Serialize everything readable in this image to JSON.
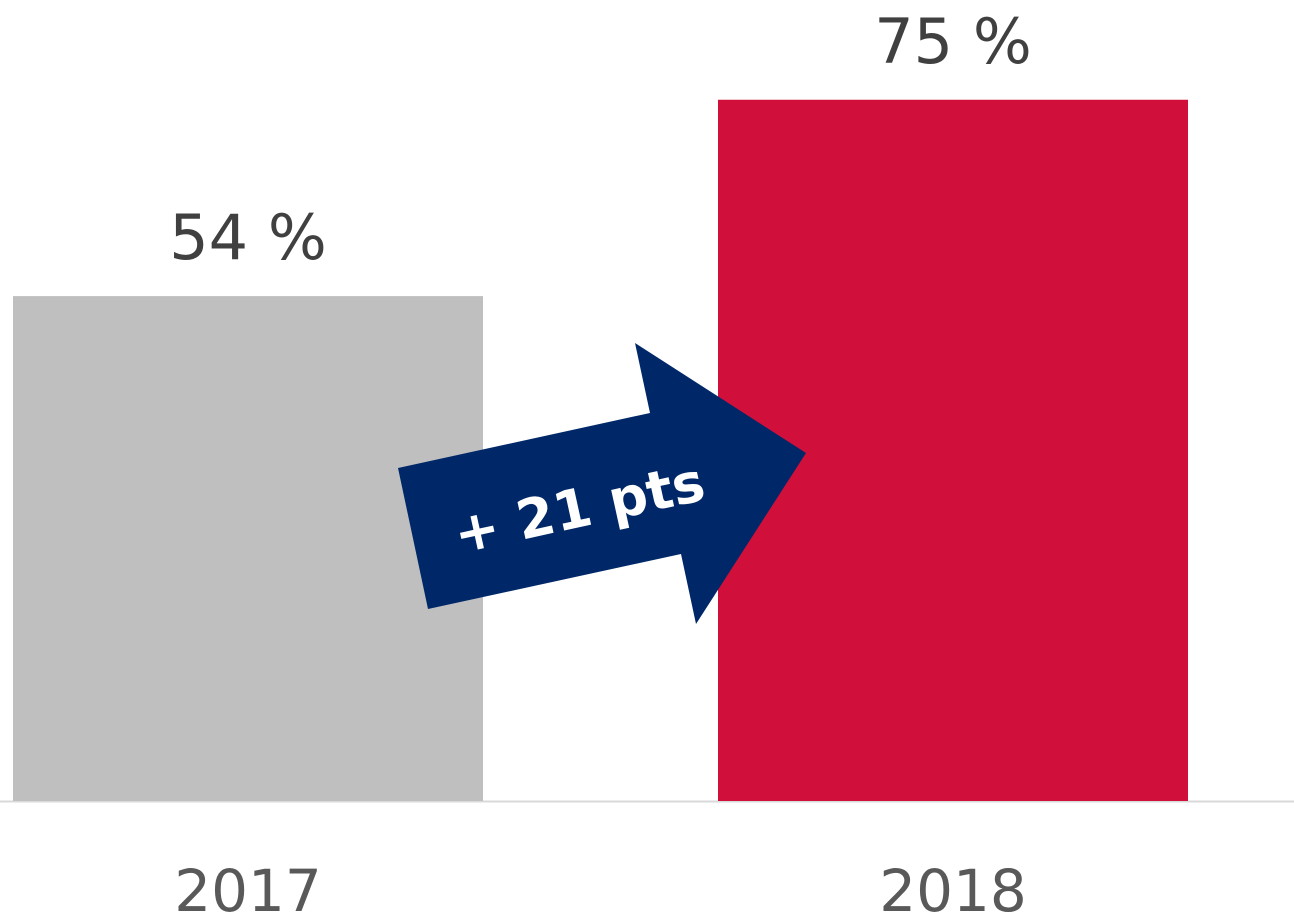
{
  "chart_data": {
    "type": "bar",
    "categories": [
      "2017",
      "2018"
    ],
    "values": [
      54,
      75
    ],
    "value_labels": [
      "54 %",
      "75 %"
    ],
    "colors": [
      "#bfbfbf",
      "#d0103a"
    ],
    "ylim": [
      0,
      80
    ],
    "annotation": "+ 21 pts",
    "annotation_color": "#002868"
  }
}
